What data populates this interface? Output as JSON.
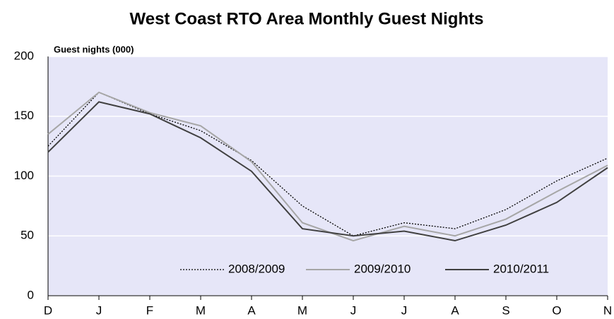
{
  "chart_data": {
    "type": "line",
    "title": "West Coast RTO Area Monthly Guest Nights",
    "ylabel": "Guest nights (000)",
    "categories": [
      "D",
      "J",
      "F",
      "M",
      "A",
      "M",
      "J",
      "J",
      "A",
      "S",
      "O",
      "N"
    ],
    "series": [
      {
        "name": "2008/2009",
        "color": "#000000",
        "style": "dotted",
        "values": [
          125,
          170,
          152,
          138,
          113,
          75,
          50,
          61,
          56,
          72,
          96,
          115
        ]
      },
      {
        "name": "2009/2010",
        "color": "#a6a6a6",
        "style": "solid",
        "values": [
          135,
          170,
          153,
          142,
          112,
          61,
          46,
          58,
          50,
          64,
          87,
          109
        ]
      },
      {
        "name": "2010/2011",
        "color": "#404040",
        "style": "solid",
        "values": [
          120,
          162,
          152,
          132,
          104,
          56,
          50,
          54,
          46,
          59,
          78,
          107
        ]
      }
    ],
    "ylim": [
      0,
      200
    ],
    "yticks": [
      0,
      50,
      100,
      150,
      200
    ],
    "grid": true,
    "legend": "bottom"
  }
}
